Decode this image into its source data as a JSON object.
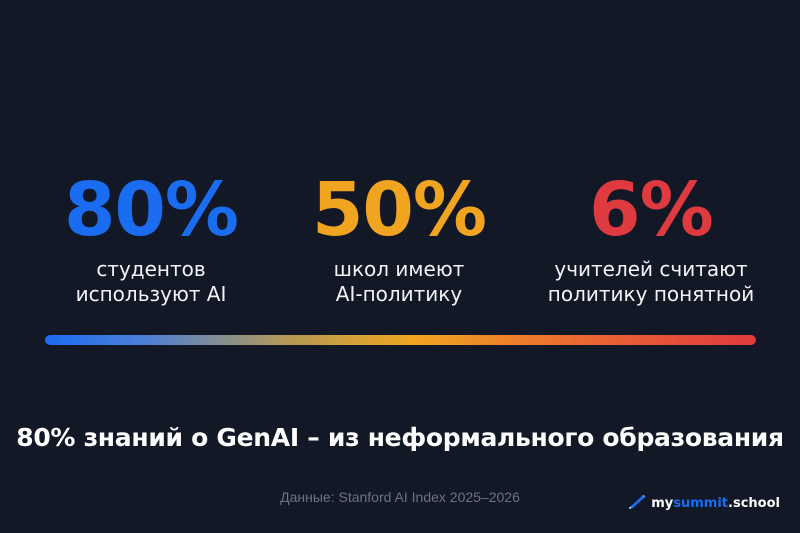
{
  "stats": [
    {
      "value": "80%",
      "label_line1": "студентов",
      "label_line2": "используют AI",
      "color": "#1a6cf0"
    },
    {
      "value": "50%",
      "label_line1": "школ имеют",
      "label_line2": "AI-политику",
      "color": "#f0a41f"
    },
    {
      "value": "6%",
      "label_line1": "учителей считают",
      "label_line2": "политику понятной",
      "color": "#df3a3f"
    }
  ],
  "headline": "80% знаний о GenAI – из неформального образования",
  "source": "Данные: Stanford AI Index 2025–2026",
  "logo": {
    "part1": "my",
    "part2": "summit",
    "part3": ".school",
    "icon": "pen-icon"
  },
  "colors": {
    "background": "#131826",
    "blue": "#1a6cf0",
    "orange": "#f0a41f",
    "red": "#df3a3f"
  }
}
